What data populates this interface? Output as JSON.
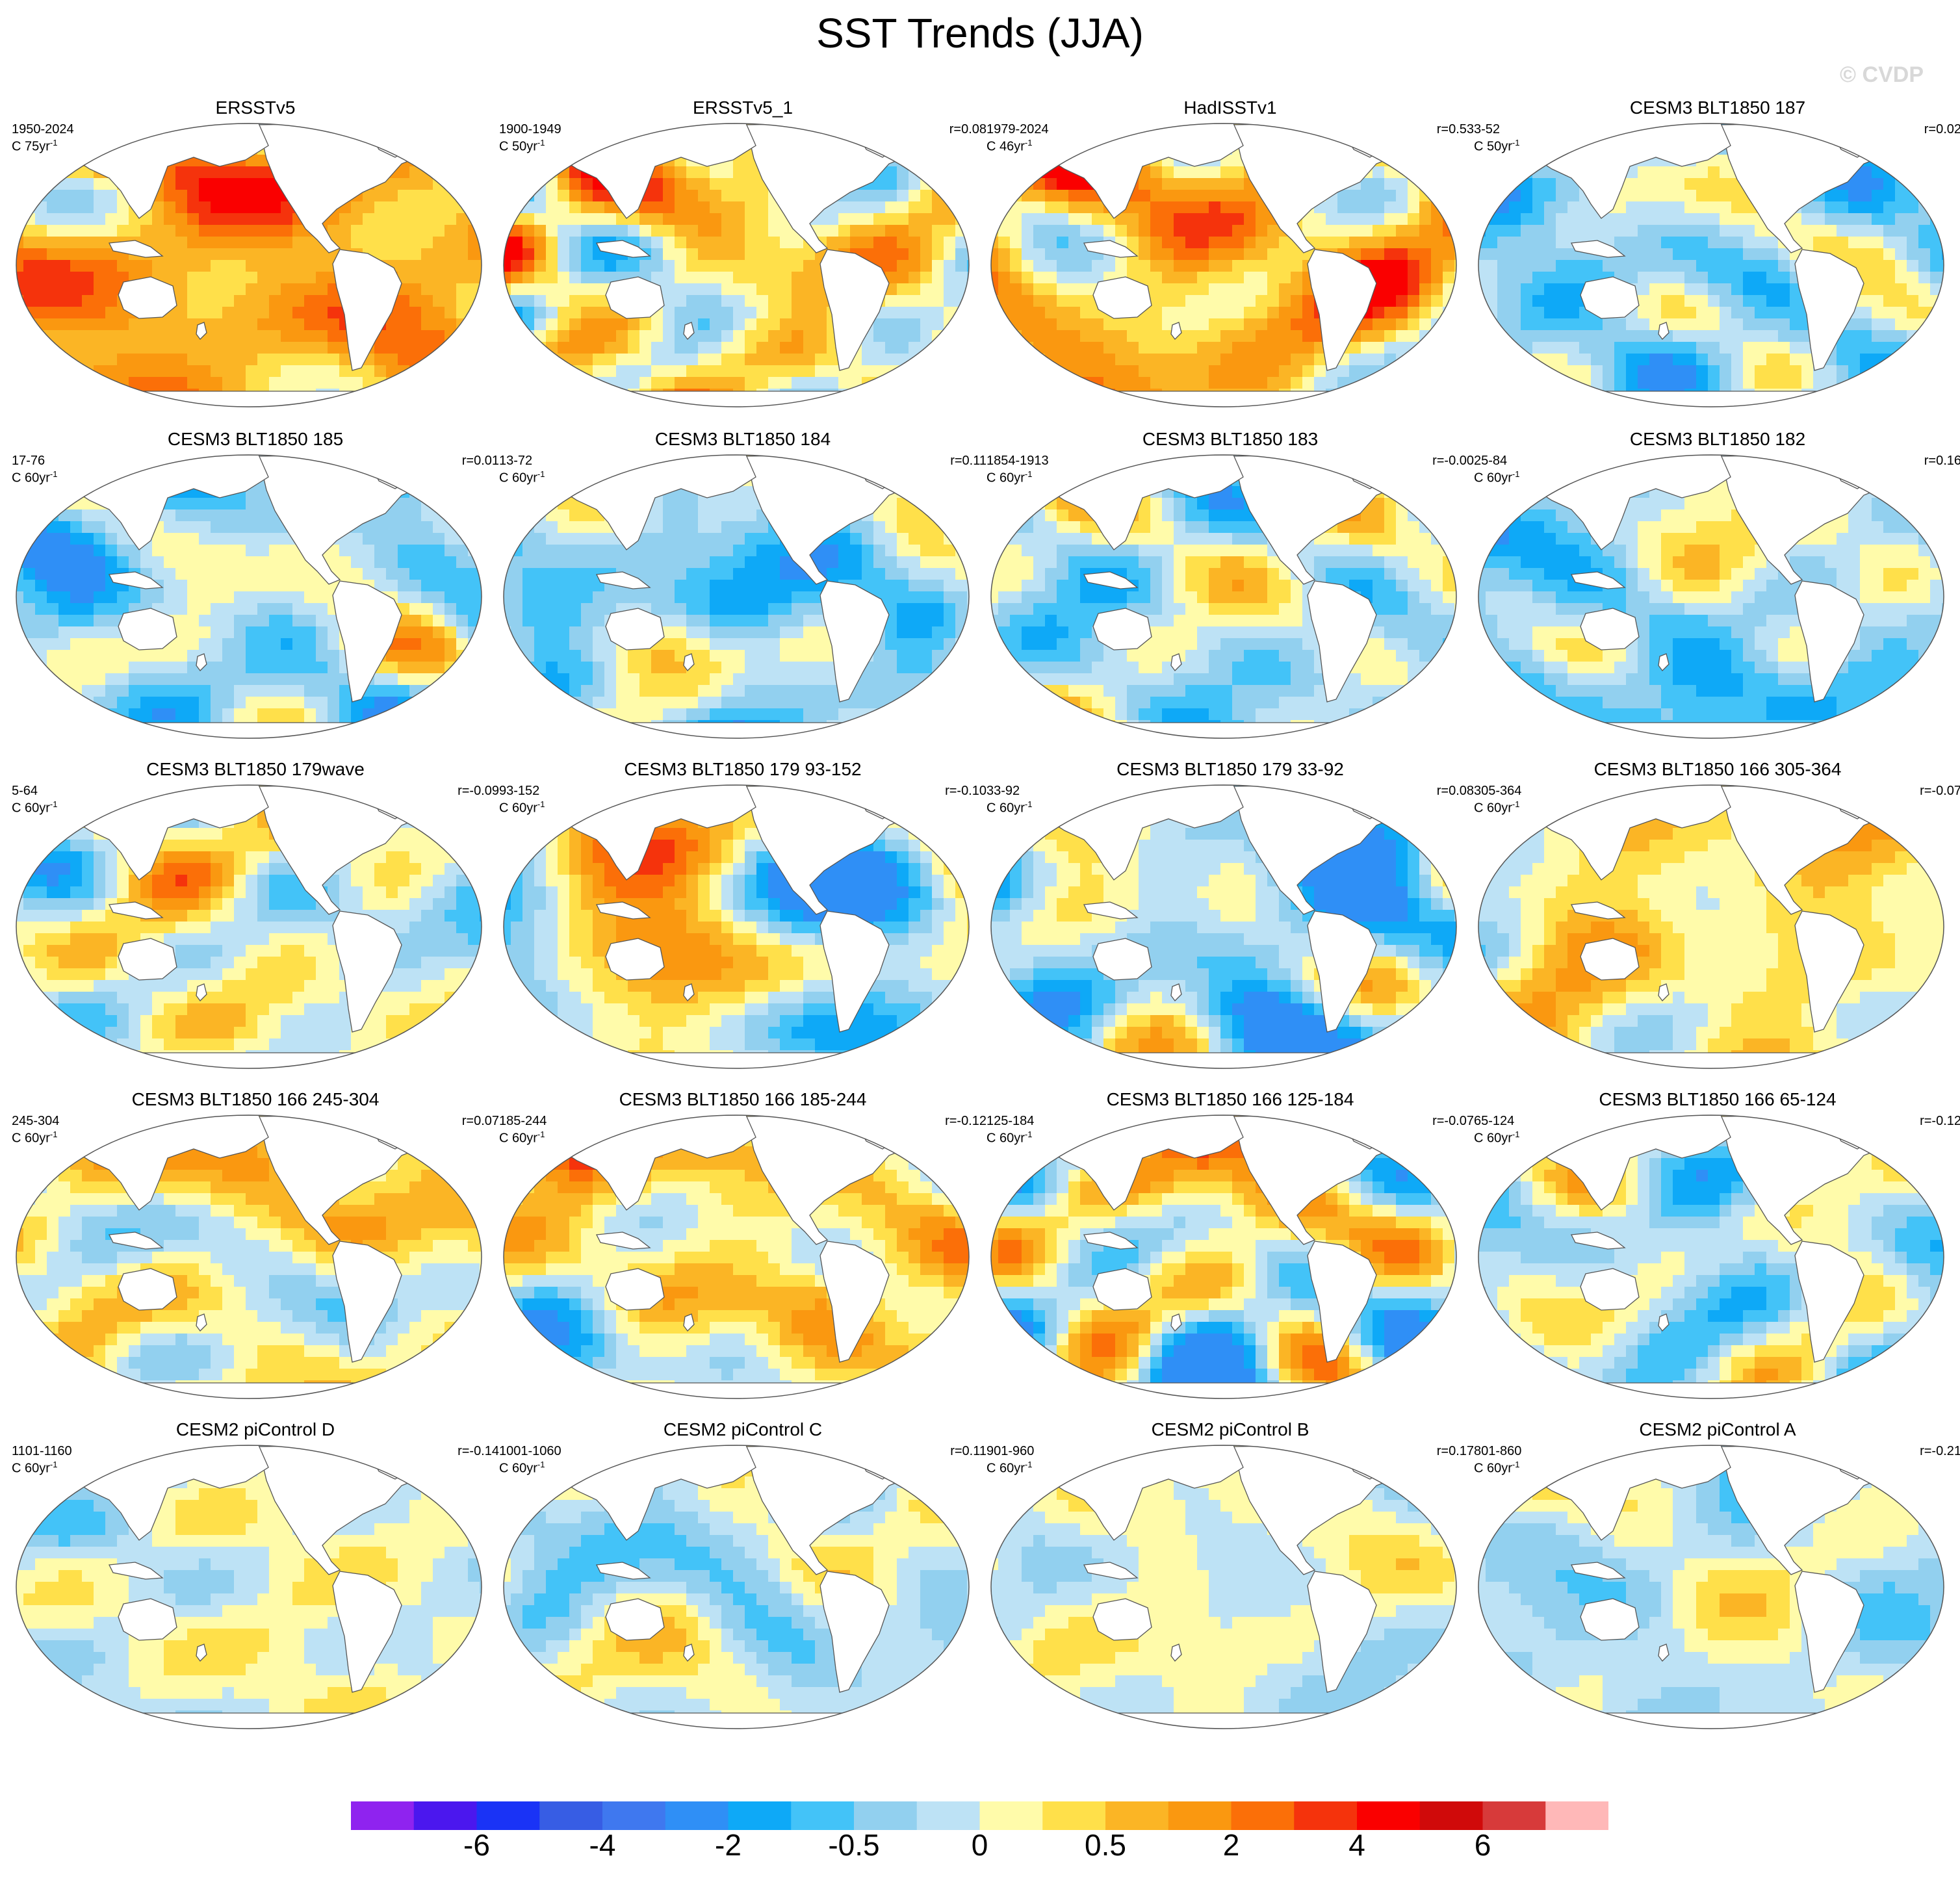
{
  "title": "SST Trends (JJA)",
  "watermark": "© CVDP",
  "chart_data": {
    "type": "heatmap",
    "title": "SST Trends (JJA)",
    "colorbar": {
      "colors": [
        "#8f23ef",
        "#4b17ee",
        "#1a33f6",
        "#375de4",
        "#3f78ef",
        "#2f8ff6",
        "#0ea9f7",
        "#43c3f8",
        "#92d0ef",
        "#bde2f5",
        "#fffbaa",
        "#ffe04a",
        "#fbb525",
        "#fa9810",
        "#fb6f08",
        "#f5330c",
        "#fa0000",
        "#d00a0a",
        "#d73a3a",
        "#ffb8b8"
      ],
      "tick_labels": [
        "-6",
        "-4",
        "-2",
        "-0.5",
        "0",
        "0.5",
        "2",
        "4",
        "6"
      ],
      "tick_boundaries": [
        2,
        4,
        6,
        8,
        10,
        12,
        14,
        16,
        18
      ]
    },
    "panels": [
      {
        "title": "ERSSTv5",
        "period": "1950-2024",
        "units": "C 75yr",
        "r": "",
        "pattern": "obs",
        "amp": 0.95,
        "seed": 1
      },
      {
        "title": "ERSSTv5_1",
        "period": "1900-1949",
        "units": "C 50yr",
        "r": "r=0.08",
        "pattern": "obs2",
        "amp": 0.9,
        "seed": 2
      },
      {
        "title": "HadISSTv1",
        "period": "1979-2024",
        "units": "C 46yr",
        "r": "r=0.53",
        "pattern": "obs3",
        "amp": 0.9,
        "seed": 3
      },
      {
        "title": "CESM3 BLT1850 187",
        "period": "3-52",
        "units": "C 50yr",
        "r": "r=0.02",
        "pattern": "cold",
        "amp": 0.9,
        "seed": 4
      },
      {
        "title": "CESM3 BLT1850 185",
        "period": "17-76",
        "units": "C 60yr",
        "r": "r=0.01",
        "pattern": "cold",
        "amp": 0.9,
        "seed": 5
      },
      {
        "title": "CESM3 BLT1850 184",
        "period": "13-72",
        "units": "C 60yr",
        "r": "r=0.11",
        "pattern": "cold",
        "amp": 0.85,
        "seed": 6
      },
      {
        "title": "CESM3 BLT1850 183",
        "period": "1854-1913",
        "units": "C 60yr",
        "r": "r=-0.00",
        "pattern": "mixcold",
        "amp": 0.7,
        "seed": 7
      },
      {
        "title": "CESM3 BLT1850 182",
        "period": "25-84",
        "units": "C 60yr",
        "r": "r=0.16",
        "pattern": "cold",
        "amp": 0.85,
        "seed": 8
      },
      {
        "title": "CESM3 BLT1850 179wave",
        "period": "5-64",
        "units": "C 60yr",
        "r": "r=-0.09",
        "pattern": "mix",
        "amp": 0.85,
        "seed": 9
      },
      {
        "title": "CESM3 BLT1850 179 93-152",
        "period": "93-152",
        "units": "C 60yr",
        "r": "r=-0.10",
        "pattern": "mix",
        "amp": 0.85,
        "seed": 10
      },
      {
        "title": "CESM3 BLT1850 179 33-92",
        "period": "33-92",
        "units": "C 60yr",
        "r": "r=0.08",
        "pattern": "cold",
        "amp": 0.95,
        "seed": 11
      },
      {
        "title": "CESM3 BLT1850 166 305-364",
        "period": "305-364",
        "units": "C 60yr",
        "r": "r=-0.07",
        "pattern": "warm",
        "amp": 0.8,
        "seed": 12
      },
      {
        "title": "CESM3 BLT1850 166 245-304",
        "period": "245-304",
        "units": "C 60yr",
        "r": "r=0.07",
        "pattern": "warm",
        "amp": 0.65,
        "seed": 13
      },
      {
        "title": "CESM3 BLT1850 166 185-244",
        "period": "185-244",
        "units": "C 60yr",
        "r": "r=-0.12",
        "pattern": "warm",
        "amp": 0.85,
        "seed": 14
      },
      {
        "title": "CESM3 BLT1850 166 125-184",
        "period": "125-184",
        "units": "C 60yr",
        "r": "r=-0.07",
        "pattern": "mix",
        "amp": 0.9,
        "seed": 15
      },
      {
        "title": "CESM3 BLT1850 166 65-124",
        "period": "65-124",
        "units": "C 60yr",
        "r": "r=-0.12",
        "pattern": "mixcold",
        "amp": 0.8,
        "seed": 16
      },
      {
        "title": "CESM2 piControl D",
        "period": "1101-1160",
        "units": "C 60yr",
        "r": "r=-0.14",
        "pattern": "mix",
        "amp": 0.45,
        "seed": 17
      },
      {
        "title": "CESM2 piControl C",
        "period": "1001-1060",
        "units": "C 60yr",
        "r": "r=0.11",
        "pattern": "mixcold",
        "amp": 0.5,
        "seed": 18
      },
      {
        "title": "CESM2 piControl B",
        "period": "901-960",
        "units": "C 60yr",
        "r": "r=0.17",
        "pattern": "mix",
        "amp": 0.5,
        "seed": 19
      },
      {
        "title": "CESM2 piControl A",
        "period": "801-860",
        "units": "C 60yr",
        "r": "r=-0.21",
        "pattern": "mixcold",
        "amp": 0.5,
        "seed": 20
      }
    ]
  }
}
